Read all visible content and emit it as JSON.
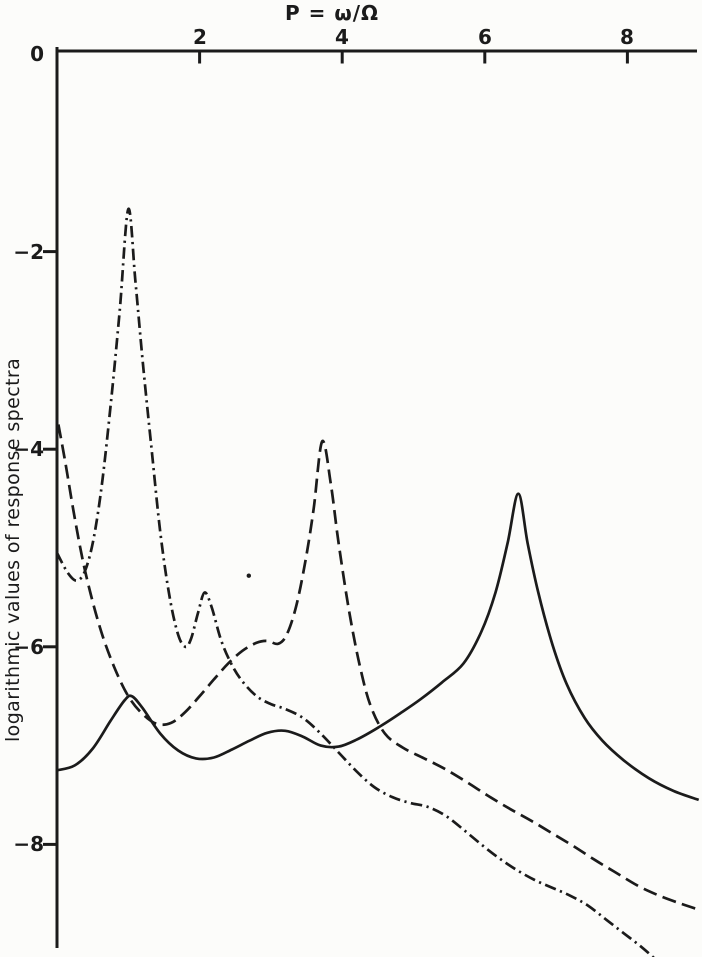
{
  "figure": {
    "background": "#fcfcfa",
    "ink": "#1b1b1b"
  },
  "chart_data": {
    "type": "line",
    "title": "",
    "xlabel": "P = ω/Ω",
    "ylabel": "logarithmic values of response spectra",
    "grid": false,
    "legend": "none",
    "x_axis": {
      "min": 0,
      "max": 9,
      "ticks": [
        {
          "value": 2,
          "label": "2"
        },
        {
          "value": 4,
          "label": "4"
        },
        {
          "value": 6,
          "label": "6"
        },
        {
          "value": 8,
          "label": "8"
        }
      ]
    },
    "y_axis": {
      "min": -9.3,
      "max": 0,
      "ticks": [
        {
          "value": 0,
          "label": "0",
          "mark": false
        },
        {
          "value": -2,
          "label": "−2",
          "mark": true
        },
        {
          "value": -4,
          "label": "−4",
          "mark": true
        },
        {
          "value": -6,
          "label": "−6",
          "mark": true
        },
        {
          "value": -8,
          "label": "−8",
          "mark": true
        }
      ]
    },
    "series": [
      {
        "name": "dash-dot-spectrum-peak-P1",
        "style": "dashdot",
        "points": [
          [
            0,
            -5.05
          ],
          [
            0.15,
            -5.25
          ],
          [
            0.28,
            -5.33
          ],
          [
            0.4,
            -5.22
          ],
          [
            0.52,
            -4.88
          ],
          [
            0.64,
            -4.3
          ],
          [
            0.76,
            -3.5
          ],
          [
            0.88,
            -2.6
          ],
          [
            1.0,
            -1.57
          ],
          [
            1.1,
            -2.3
          ],
          [
            1.2,
            -3.1
          ],
          [
            1.32,
            -3.95
          ],
          [
            1.45,
            -4.85
          ],
          [
            1.58,
            -5.5
          ],
          [
            1.7,
            -5.88
          ],
          [
            1.8,
            -6.0
          ],
          [
            1.88,
            -5.92
          ],
          [
            1.98,
            -5.65
          ],
          [
            2.07,
            -5.45
          ],
          [
            2.17,
            -5.6
          ],
          [
            2.3,
            -5.93
          ],
          [
            2.45,
            -6.18
          ],
          [
            2.6,
            -6.35
          ],
          [
            2.8,
            -6.5
          ],
          [
            3.0,
            -6.58
          ],
          [
            3.2,
            -6.63
          ],
          [
            3.45,
            -6.72
          ],
          [
            3.7,
            -6.88
          ],
          [
            3.95,
            -7.07
          ],
          [
            4.2,
            -7.26
          ],
          [
            4.45,
            -7.42
          ],
          [
            4.7,
            -7.52
          ],
          [
            4.95,
            -7.58
          ],
          [
            5.2,
            -7.62
          ],
          [
            5.45,
            -7.71
          ],
          [
            5.7,
            -7.85
          ],
          [
            5.95,
            -8.0
          ],
          [
            6.2,
            -8.14
          ],
          [
            6.45,
            -8.26
          ],
          [
            6.7,
            -8.36
          ],
          [
            6.95,
            -8.44
          ],
          [
            7.2,
            -8.52
          ],
          [
            7.45,
            -8.62
          ],
          [
            7.7,
            -8.76
          ],
          [
            7.95,
            -8.9
          ],
          [
            8.2,
            -9.04
          ],
          [
            8.45,
            -9.2
          ],
          [
            8.6,
            -9.3
          ]
        ]
      },
      {
        "name": "dashed-spectrum-peak-P3.7",
        "style": "dashed",
        "points": [
          [
            0.02,
            -3.75
          ],
          [
            0.12,
            -4.15
          ],
          [
            0.25,
            -4.7
          ],
          [
            0.4,
            -5.25
          ],
          [
            0.6,
            -5.8
          ],
          [
            0.8,
            -6.2
          ],
          [
            1.0,
            -6.5
          ],
          [
            1.2,
            -6.68
          ],
          [
            1.4,
            -6.78
          ],
          [
            1.6,
            -6.77
          ],
          [
            1.8,
            -6.66
          ],
          [
            2.0,
            -6.5
          ],
          [
            2.2,
            -6.33
          ],
          [
            2.4,
            -6.17
          ],
          [
            2.6,
            -6.04
          ],
          [
            2.8,
            -5.96
          ],
          [
            2.95,
            -5.94
          ],
          [
            3.1,
            -5.97
          ],
          [
            3.22,
            -5.88
          ],
          [
            3.35,
            -5.6
          ],
          [
            3.48,
            -5.15
          ],
          [
            3.6,
            -4.6
          ],
          [
            3.72,
            -3.92
          ],
          [
            3.84,
            -4.35
          ],
          [
            3.95,
            -4.95
          ],
          [
            4.1,
            -5.65
          ],
          [
            4.25,
            -6.2
          ],
          [
            4.4,
            -6.6
          ],
          [
            4.6,
            -6.88
          ],
          [
            4.85,
            -7.02
          ],
          [
            5.15,
            -7.13
          ],
          [
            5.45,
            -7.24
          ],
          [
            5.75,
            -7.37
          ],
          [
            6.05,
            -7.51
          ],
          [
            6.35,
            -7.64
          ],
          [
            6.65,
            -7.76
          ],
          [
            6.95,
            -7.89
          ],
          [
            7.25,
            -8.02
          ],
          [
            7.55,
            -8.16
          ],
          [
            7.85,
            -8.29
          ],
          [
            8.15,
            -8.42
          ],
          [
            8.45,
            -8.52
          ],
          [
            8.75,
            -8.6
          ],
          [
            9.0,
            -8.66
          ]
        ]
      },
      {
        "name": "solid-spectrum-peak-P6.5",
        "style": "solid",
        "points": [
          [
            0,
            -7.25
          ],
          [
            0.25,
            -7.2
          ],
          [
            0.5,
            -7.03
          ],
          [
            0.75,
            -6.75
          ],
          [
            0.95,
            -6.54
          ],
          [
            1.05,
            -6.5
          ],
          [
            1.2,
            -6.62
          ],
          [
            1.45,
            -6.88
          ],
          [
            1.7,
            -7.05
          ],
          [
            1.95,
            -7.13
          ],
          [
            2.2,
            -7.12
          ],
          [
            2.45,
            -7.04
          ],
          [
            2.7,
            -6.95
          ],
          [
            2.95,
            -6.87
          ],
          [
            3.2,
            -6.85
          ],
          [
            3.45,
            -6.91
          ],
          [
            3.7,
            -7.0
          ],
          [
            3.95,
            -7.01
          ],
          [
            4.2,
            -6.94
          ],
          [
            4.5,
            -6.82
          ],
          [
            4.8,
            -6.68
          ],
          [
            5.1,
            -6.53
          ],
          [
            5.4,
            -6.36
          ],
          [
            5.7,
            -6.17
          ],
          [
            5.95,
            -5.85
          ],
          [
            6.15,
            -5.45
          ],
          [
            6.32,
            -4.95
          ],
          [
            6.47,
            -4.45
          ],
          [
            6.6,
            -4.95
          ],
          [
            6.75,
            -5.45
          ],
          [
            6.95,
            -5.98
          ],
          [
            7.15,
            -6.38
          ],
          [
            7.4,
            -6.72
          ],
          [
            7.65,
            -6.95
          ],
          [
            7.95,
            -7.15
          ],
          [
            8.3,
            -7.33
          ],
          [
            8.65,
            -7.46
          ],
          [
            9.0,
            -7.55
          ]
        ]
      }
    ],
    "artifact_dot": {
      "x": 2.69,
      "y": -5.28
    }
  }
}
